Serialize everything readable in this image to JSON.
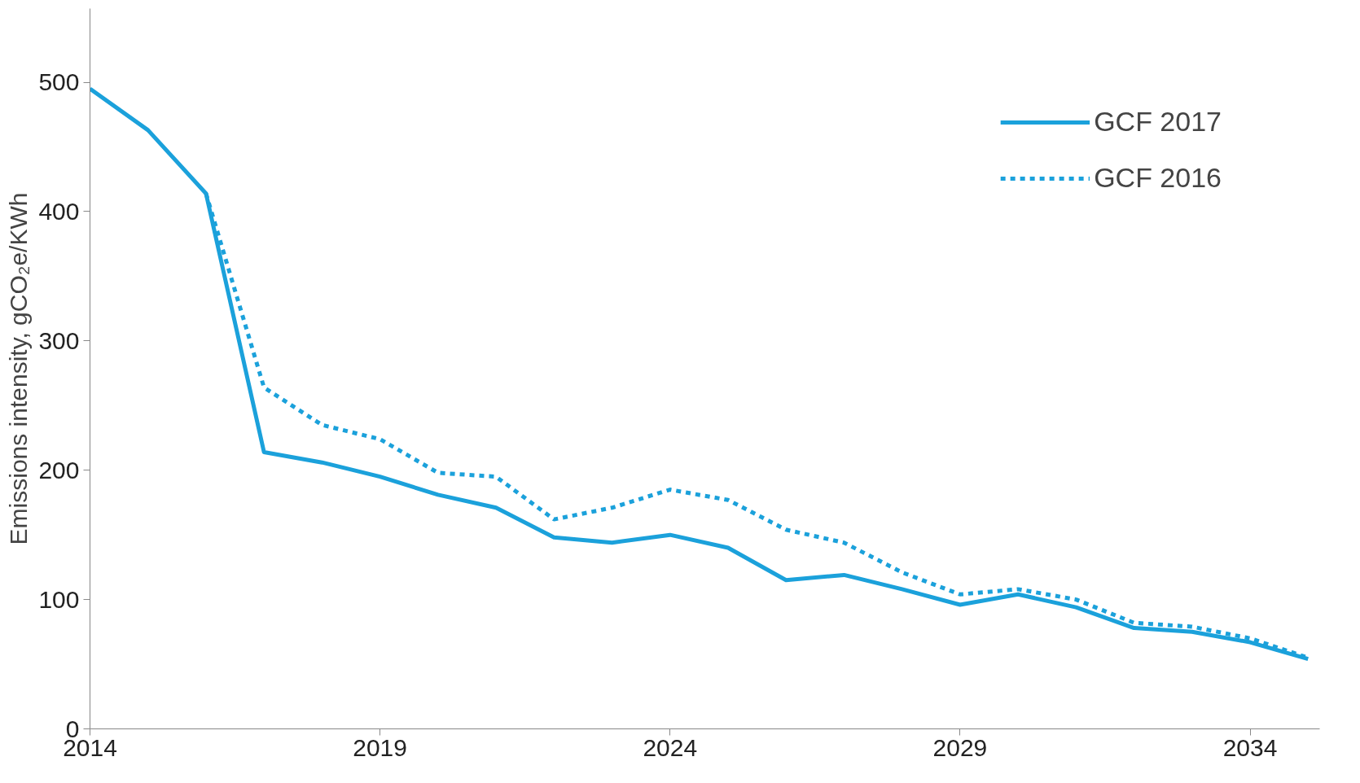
{
  "chart_data": {
    "type": "line",
    "ylabel": "Emissions intensity, gCO₂e/KWh",
    "x": [
      2014,
      2015,
      2016,
      2017,
      2018,
      2019,
      2020,
      2021,
      2022,
      2023,
      2024,
      2025,
      2026,
      2027,
      2028,
      2029,
      2030,
      2031,
      2032,
      2033,
      2034,
      2035
    ],
    "series": [
      {
        "name": "GCF 2017",
        "color": "#1ba1db",
        "line_style": "solid",
        "values": [
          495,
          463,
          414,
          214,
          206,
          195,
          181,
          171,
          148,
          144,
          150,
          140,
          115,
          119,
          108,
          96,
          104,
          94,
          78,
          75,
          67,
          54
        ]
      },
      {
        "name": "GCF 2016",
        "color": "#1ba1db",
        "line_style": "dashed",
        "values": [
          null,
          null,
          414,
          264,
          235,
          224,
          198,
          195,
          162,
          171,
          185,
          177,
          154,
          144,
          121,
          104,
          108,
          100,
          82,
          79,
          70,
          55
        ]
      }
    ],
    "xlim": [
      2014,
      2035.2
    ],
    "ylim": [
      0,
      557
    ],
    "xticks": [
      2014,
      2019,
      2024,
      2029,
      2034
    ],
    "yticks": [
      0,
      100,
      200,
      300,
      400,
      500
    ],
    "grid": false,
    "legend": "top right",
    "marker": "none"
  }
}
